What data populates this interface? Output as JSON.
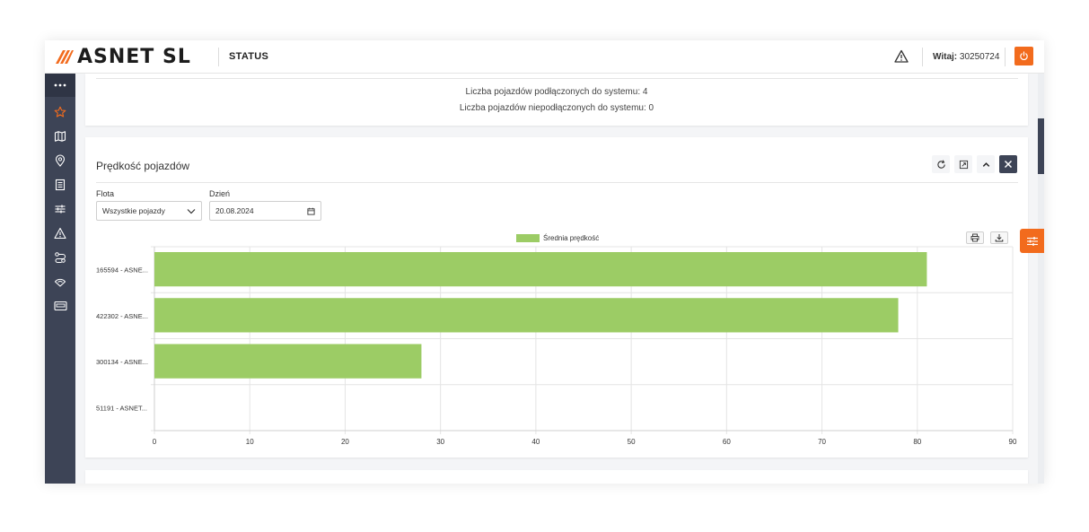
{
  "header": {
    "logo_text": "ASNET SL",
    "page_title": "STATUS",
    "welcome_label": "Witaj:",
    "user_id": "30250724"
  },
  "sidebar": {
    "items": [
      {
        "icon": "more-dots-icon",
        "active": true
      },
      {
        "icon": "star-icon",
        "active": false
      },
      {
        "icon": "map-icon",
        "active": false
      },
      {
        "icon": "location-pin-icon",
        "active": false
      },
      {
        "icon": "document-icon",
        "active": false
      },
      {
        "icon": "sliders-icon",
        "active": false
      },
      {
        "icon": "warning-icon",
        "active": false
      },
      {
        "icon": "route-icon",
        "active": false
      },
      {
        "icon": "signal-icon",
        "active": false
      },
      {
        "icon": "card-icon",
        "active": false
      }
    ]
  },
  "status_card": {
    "connected_text": "Liczba pojazdów podłączonych do systemu: 4",
    "disconnected_text": "Liczba pojazdów niepodłączonych do systemu: 0"
  },
  "speed_card": {
    "title": "Prędkość pojazdów",
    "fleet_label": "Flota",
    "fleet_value": "Wszystkie pojazdy",
    "day_label": "Dzień",
    "day_value": "20.08.2024"
  },
  "colors": {
    "accent": "#f26b1d",
    "sidebar": "#3d4456",
    "bar": "#9ccc65"
  },
  "chart_data": {
    "type": "bar",
    "orientation": "horizontal",
    "categories": [
      "165594 - ASNE...",
      "422302 - ASNE...",
      "300134 - ASNE...",
      "51191 - ASNET..."
    ],
    "series": [
      {
        "name": "Średnia prędkość",
        "values": [
          81,
          78,
          28,
          0
        ]
      }
    ],
    "xlim": [
      0,
      90
    ],
    "x_ticks": [
      0,
      10,
      20,
      30,
      40,
      50,
      60,
      70,
      80,
      90
    ],
    "grid": true,
    "legend_position": "top"
  }
}
